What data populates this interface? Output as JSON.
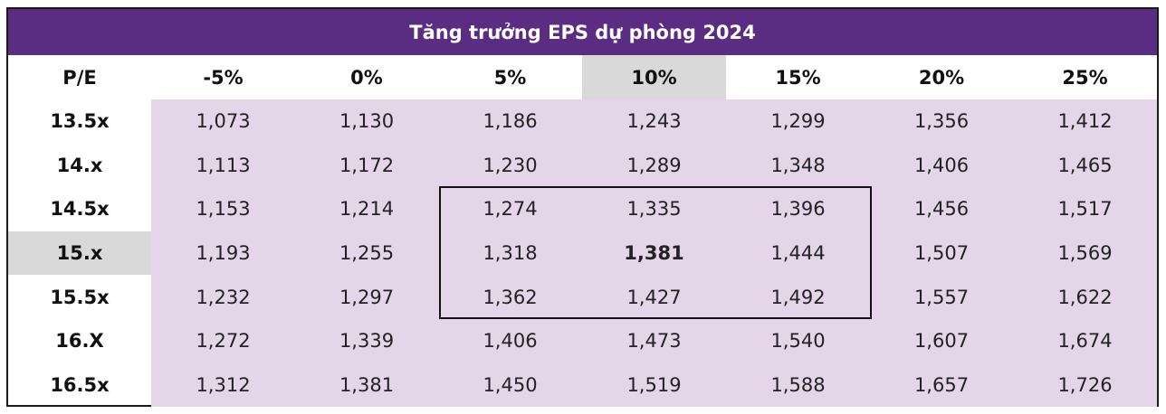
{
  "title": "Tăng trưởng EPS dự phòng 2024",
  "header": {
    "row_label": "P/E",
    "columns": [
      "-5%",
      "0%",
      "5%",
      "10%",
      "15%",
      "20%",
      "25%"
    ]
  },
  "rows": [
    {
      "pe": "13.5x",
      "values": [
        "1,073",
        "1,130",
        "1,186",
        "1,243",
        "1,299",
        "1,356",
        "1,412"
      ]
    },
    {
      "pe": "14.x",
      "values": [
        "1,113",
        "1,172",
        "1,230",
        "1,289",
        "1,348",
        "1,406",
        "1,465"
      ]
    },
    {
      "pe": "14.5x",
      "values": [
        "1,153",
        "1,214",
        "1,274",
        "1,335",
        "1,396",
        "1,456",
        "1,517"
      ]
    },
    {
      "pe": "15.x",
      "values": [
        "1,193",
        "1,255",
        "1,318",
        "1,381",
        "1,444",
        "1,507",
        "1,569"
      ]
    },
    {
      "pe": "15.5x",
      "values": [
        "1,232",
        "1,297",
        "1,362",
        "1,427",
        "1,492",
        "1,557",
        "1,622"
      ]
    },
    {
      "pe": "16.X",
      "values": [
        "1,272",
        "1,339",
        "1,406",
        "1,473",
        "1,540",
        "1,607",
        "1,674"
      ]
    },
    {
      "pe": "16.5x",
      "values": [
        "1,312",
        "1,381",
        "1,450",
        "1,519",
        "1,588",
        "1,657",
        "1,726"
      ]
    }
  ],
  "highlight": {
    "column_index": 3,
    "row_index": 3
  },
  "colors": {
    "title_bg": "#5b2d82",
    "cell_bg": "#e4d5e8",
    "highlight_bg": "#d9d9d9"
  }
}
